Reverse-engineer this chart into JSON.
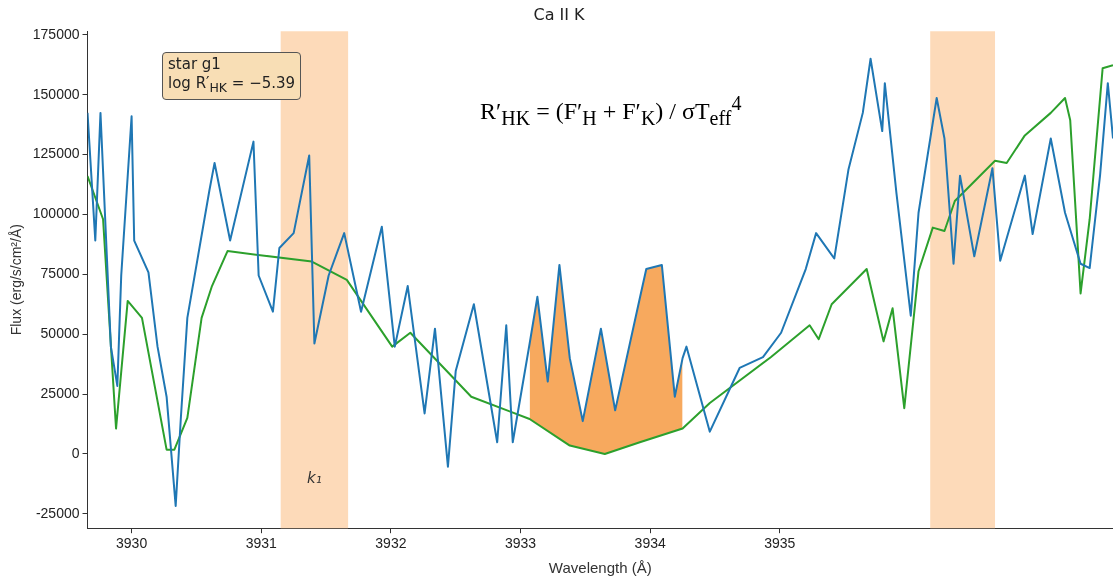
{
  "chart_data": {
    "type": "line",
    "title": "Ca II K",
    "xlabel": "Wavelength (Å)",
    "ylabel": "Flux (erg/s/cm²/Å)",
    "xlim": [
      3929.66,
      3937.57
    ],
    "xticks": [
      3930,
      3931,
      3932,
      3933,
      3934,
      3935
    ],
    "ylim": [
      -31000,
      176500
    ],
    "yticks": [
      -25000,
      0,
      25000,
      50000,
      75000,
      100000,
      125000,
      150000,
      175000
    ],
    "grid": false,
    "legend": false,
    "marker": "none",
    "line_style": "solid",
    "annotations": [
      "star g1\nlog R′$_{HK}$ = −5.39",
      "R′$_{HK}$ = (F′$_{H}$ + F′$_{K}$) / σT$_{eff}$$^{4}$"
    ],
    "bands": [
      {
        "axis": "x",
        "from": 3931.15,
        "to": 3931.67,
        "label": "k₁",
        "color": "#fdd3ad"
      },
      {
        "axis": "x",
        "from": 3936.16,
        "to": 3936.66,
        "color": "#fdd3ad"
      }
    ],
    "series": [
      {
        "type": "area",
        "color": "#f7a95e",
        "x": [
          3933.07,
          3933.13,
          3933.21,
          3933.3,
          3933.38,
          3933.48,
          3933.62,
          3933.65,
          3933.73,
          3933.92,
          3933.97,
          3934.09,
          3934.19,
          3934.25
        ],
        "values": [
          46000,
          65600,
          30200,
          78900,
          40000,
          13700,
          52300,
          43000,
          18200,
          65000,
          77200,
          78900,
          23900,
          40000
        ]
      },
      {
        "type": "line",
        "color": "#2ca02c",
        "x": [
          3929.66,
          3929.78,
          3929.88,
          3929.97,
          3930.08,
          3930.27,
          3930.33,
          3930.43,
          3930.54,
          3930.62,
          3930.74,
          3931.39,
          3931.66,
          3932.01,
          3932.15,
          3932.62,
          3933.07,
          3933.38,
          3933.65,
          3933.92,
          3934.25,
          3934.46,
          3934.93,
          3935.23,
          3935.3,
          3935.4,
          3935.67,
          3935.8,
          3935.87,
          3935.96,
          3936.07,
          3936.18,
          3936.27,
          3936.35,
          3936.66,
          3936.75,
          3936.89,
          3937.09,
          3937.2,
          3937.24,
          3937.32,
          3937.39,
          3937.49,
          3937.57
        ],
        "values": [
          116000,
          98000,
          10600,
          63900,
          56800,
          1800,
          1800,
          15100,
          56800,
          70100,
          84700,
          80300,
          72700,
          44800,
          50600,
          23900,
          14600,
          3500,
          0,
          4900,
          10600,
          21300,
          40400,
          53700,
          47900,
          62500,
          77200,
          47000,
          60800,
          19100,
          76300,
          94500,
          93100,
          105600,
          122400,
          121500,
          133000,
          142400,
          148600,
          139300,
          67000,
          98000,
          161000,
          162300
        ]
      },
      {
        "type": "line",
        "color": "#1f77b4",
        "x": [
          3929.66,
          3929.72,
          3929.76,
          3929.84,
          3929.89,
          3929.92,
          3930.0,
          3930.02,
          3930.13,
          3930.2,
          3930.27,
          3930.34,
          3930.38,
          3930.43,
          3930.6,
          3930.64,
          3930.76,
          3930.94,
          3930.98,
          3931.09,
          3931.14,
          3931.25,
          3931.37,
          3931.41,
          3931.52,
          3931.64,
          3931.77,
          3931.93,
          3932.03,
          3932.13,
          3932.26,
          3932.34,
          3932.44,
          3932.5,
          3932.64,
          3932.82,
          3932.89,
          3932.94,
          3933.07,
          3933.13,
          3933.21,
          3933.3,
          3933.38,
          3933.48,
          3933.62,
          3933.65,
          3933.73,
          3933.92,
          3933.97,
          3934.09,
          3934.19,
          3934.25,
          3934.28,
          3934.46,
          3934.69,
          3934.87,
          3935.01,
          3935.2,
          3935.28,
          3935.42,
          3935.53,
          3935.64,
          3935.7,
          3935.79,
          3935.81,
          3935.9,
          3936.01,
          3936.07,
          3936.21,
          3936.27,
          3936.34,
          3936.39,
          3936.5,
          3936.64,
          3936.7,
          3936.89,
          3936.95,
          3937.09,
          3937.2,
          3937.32,
          3937.39,
          3937.47,
          3937.53,
          3937.57
        ],
        "values": [
          142400,
          89100,
          142400,
          44800,
          28400,
          74500,
          141000,
          89100,
          75800,
          44800,
          23900,
          -21700,
          15100,
          56800,
          110000,
          121500,
          89100,
          130400,
          74500,
          59400,
          86000,
          92200,
          124600,
          46100,
          74500,
          92200,
          59400,
          94900,
          44800,
          70100,
          16900,
          52300,
          -5300,
          34600,
          62500,
          4900,
          53700,
          4900,
          46000,
          65600,
          30200,
          78900,
          40000,
          13700,
          52300,
          43000,
          18200,
          65000,
          77200,
          78900,
          23900,
          40000,
          44800,
          9300,
          35900,
          40400,
          50600,
          77200,
          92200,
          81600,
          118900,
          142400,
          165000,
          134800,
          154800,
          108700,
          57700,
          100700,
          148600,
          131700,
          79400,
          116200,
          82500,
          119300,
          80700,
          116200,
          91800,
          131700,
          100700,
          79400,
          77600,
          116200,
          154800,
          131700
        ]
      }
    ]
  }
}
